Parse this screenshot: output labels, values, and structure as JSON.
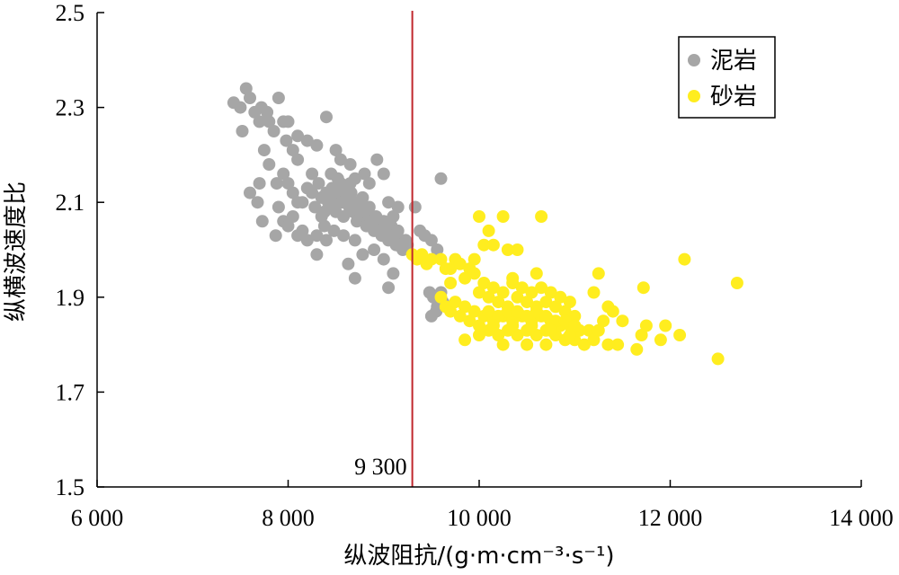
{
  "chart_data": {
    "type": "scatter",
    "xlabel": "纵波阻抗/(g·m·cm⁻³·s⁻¹)",
    "ylabel": "纵横波速度比",
    "xlim": [
      6000,
      14000
    ],
    "ylim": [
      1.5,
      2.5
    ],
    "x_ticks": [
      6000,
      8000,
      10000,
      12000,
      14000
    ],
    "x_tick_labels": [
      "6 000",
      "8 000",
      "10 000",
      "12 000",
      "14 000"
    ],
    "y_ticks": [
      1.5,
      1.7,
      1.9,
      2.1,
      2.3,
      2.5
    ],
    "y_tick_labels": [
      "1.5",
      "1.7",
      "1.9",
      "2.1",
      "2.3",
      "2.5"
    ],
    "grid": false,
    "legend_position": "top-right",
    "threshold": {
      "x": 9300,
      "label": "9 300",
      "color": "#c0282d"
    },
    "series": [
      {
        "name": "泥岩",
        "color": "#a6a6a6",
        "points": [
          [
            7430,
            2.31
          ],
          [
            7500,
            2.3
          ],
          [
            7560,
            2.34
          ],
          [
            7600,
            2.32
          ],
          [
            7520,
            2.25
          ],
          [
            7650,
            2.29
          ],
          [
            7700,
            2.27
          ],
          [
            7720,
            2.3
          ],
          [
            7780,
            2.29
          ],
          [
            7800,
            2.27
          ],
          [
            7850,
            2.25
          ],
          [
            7900,
            2.32
          ],
          [
            7950,
            2.27
          ],
          [
            7980,
            2.23
          ],
          [
            8050,
            2.21
          ],
          [
            8100,
            2.19
          ],
          [
            7750,
            2.21
          ],
          [
            7800,
            2.18
          ],
          [
            7700,
            2.14
          ],
          [
            7680,
            2.1
          ],
          [
            7730,
            2.06
          ],
          [
            7900,
            2.09
          ],
          [
            7950,
            2.06
          ],
          [
            8050,
            2.07
          ],
          [
            8100,
            2.03
          ],
          [
            8200,
            2.02
          ],
          [
            8300,
            2.03
          ],
          [
            8380,
            2.05
          ],
          [
            8200,
            2.23
          ],
          [
            8300,
            2.22
          ],
          [
            8400,
            2.28
          ],
          [
            8500,
            2.21
          ],
          [
            8550,
            2.19
          ],
          [
            8650,
            2.18
          ],
          [
            8800,
            2.16
          ],
          [
            8850,
            2.14
          ],
          [
            8930,
            2.19
          ],
          [
            9000,
            2.16
          ],
          [
            7880,
            2.14
          ],
          [
            7950,
            2.16
          ],
          [
            8000,
            2.14
          ],
          [
            8050,
            2.12
          ],
          [
            8100,
            2.1
          ],
          [
            8150,
            2.1
          ],
          [
            8200,
            2.13
          ],
          [
            8250,
            2.12
          ],
          [
            8280,
            2.09
          ],
          [
            8320,
            2.14
          ],
          [
            8350,
            2.11
          ],
          [
            8380,
            2.08
          ],
          [
            8400,
            2.12
          ],
          [
            8420,
            2.1
          ],
          [
            8450,
            2.09
          ],
          [
            8460,
            2.13
          ],
          [
            8480,
            2.11
          ],
          [
            8500,
            2.08
          ],
          [
            8520,
            2.15
          ],
          [
            8540,
            2.12
          ],
          [
            8560,
            2.1
          ],
          [
            8580,
            2.07
          ],
          [
            8600,
            2.13
          ],
          [
            8620,
            2.11
          ],
          [
            8640,
            2.09
          ],
          [
            8660,
            2.12
          ],
          [
            8680,
            2.08
          ],
          [
            8700,
            2.1
          ],
          [
            8720,
            2.06
          ],
          [
            8740,
            2.09
          ],
          [
            8760,
            2.07
          ],
          [
            8780,
            2.11
          ],
          [
            8800,
            2.08
          ],
          [
            8820,
            2.05
          ],
          [
            8850,
            2.07
          ],
          [
            8880,
            2.06
          ],
          [
            8900,
            2.04
          ],
          [
            8920,
            2.07
          ],
          [
            8950,
            2.05
          ],
          [
            8980,
            2.03
          ],
          [
            9000,
            2.06
          ],
          [
            9020,
            2.04
          ],
          [
            9050,
            2.02
          ],
          [
            9080,
            2.05
          ],
          [
            9100,
            2.03
          ],
          [
            9130,
            2.01
          ],
          [
            9150,
            2.04
          ],
          [
            9180,
            2.02
          ],
          [
            9200,
            2.0
          ],
          [
            9230,
            2.02
          ],
          [
            9250,
            2.01
          ],
          [
            8450,
            2.16
          ],
          [
            8550,
            2.14
          ],
          [
            8650,
            2.14
          ],
          [
            8350,
            2.07
          ],
          [
            8480,
            2.04
          ],
          [
            8580,
            2.03
          ],
          [
            8700,
            2.02
          ],
          [
            8780,
            1.99
          ],
          [
            8900,
            2.0
          ],
          [
            9000,
            1.98
          ],
          [
            9100,
            1.95
          ],
          [
            8700,
            1.94
          ],
          [
            8630,
            1.97
          ],
          [
            9050,
            1.92
          ],
          [
            8400,
            2.02
          ],
          [
            8300,
            1.99
          ],
          [
            8150,
            2.04
          ],
          [
            8000,
            2.05
          ],
          [
            7870,
            2.03
          ],
          [
            7600,
            2.12
          ],
          [
            9050,
            2.1
          ],
          [
            9100,
            2.07
          ],
          [
            9150,
            2.09
          ],
          [
            9330,
            2.09
          ],
          [
            9380,
            2.04
          ],
          [
            9430,
            2.03
          ],
          [
            9500,
            2.02
          ],
          [
            9560,
            2.0
          ],
          [
            9600,
            2.15
          ],
          [
            9480,
            1.91
          ],
          [
            9520,
            1.9
          ],
          [
            9560,
            1.88
          ],
          [
            9620,
            1.89
          ],
          [
            9600,
            1.91
          ],
          [
            9500,
            1.86
          ],
          [
            9550,
            1.87
          ],
          [
            8250,
            2.16
          ],
          [
            8100,
            2.24
          ],
          [
            8000,
            2.27
          ],
          [
            8700,
            2.15
          ],
          [
            8850,
            2.09
          ]
        ]
      },
      {
        "name": "砂岩",
        "color": "#ffed1f",
        "points": [
          [
            9300,
            1.99
          ],
          [
            9350,
            1.98
          ],
          [
            9400,
            1.99
          ],
          [
            9450,
            1.97
          ],
          [
            9500,
            1.98
          ],
          [
            9600,
            1.98
          ],
          [
            9650,
            1.96
          ],
          [
            9700,
            1.96
          ],
          [
            9750,
            1.98
          ],
          [
            9800,
            1.97
          ],
          [
            9850,
            1.94
          ],
          [
            9900,
            1.96
          ],
          [
            9950,
            1.98
          ],
          [
            10000,
            2.07
          ],
          [
            10050,
            2.01
          ],
          [
            10100,
            2.04
          ],
          [
            10150,
            2.01
          ],
          [
            10250,
            2.07
          ],
          [
            10300,
            2.0
          ],
          [
            10650,
            2.07
          ],
          [
            9600,
            1.9
          ],
          [
            9650,
            1.88
          ],
          [
            9700,
            1.87
          ],
          [
            9750,
            1.89
          ],
          [
            9800,
            1.86
          ],
          [
            9850,
            1.88
          ],
          [
            9900,
            1.85
          ],
          [
            9950,
            1.87
          ],
          [
            10000,
            1.84
          ],
          [
            10050,
            1.86
          ],
          [
            10100,
            1.83
          ],
          [
            10150,
            1.85
          ],
          [
            10200,
            1.82
          ],
          [
            10250,
            1.86
          ],
          [
            10300,
            1.83
          ],
          [
            10350,
            1.85
          ],
          [
            10400,
            1.82
          ],
          [
            10450,
            1.86
          ],
          [
            10500,
            1.83
          ],
          [
            10550,
            1.85
          ],
          [
            10600,
            1.82
          ],
          [
            10650,
            1.86
          ],
          [
            10700,
            1.83
          ],
          [
            10750,
            1.85
          ],
          [
            10800,
            1.82
          ],
          [
            10850,
            1.84
          ],
          [
            10900,
            1.81
          ],
          [
            10950,
            1.84
          ],
          [
            11000,
            1.81
          ],
          [
            11050,
            1.83
          ],
          [
            11100,
            1.8
          ],
          [
            11150,
            1.83
          ],
          [
            11200,
            1.81
          ],
          [
            10000,
            1.91
          ],
          [
            10050,
            1.93
          ],
          [
            10100,
            1.9
          ],
          [
            10150,
            1.92
          ],
          [
            10200,
            1.89
          ],
          [
            10250,
            1.91
          ],
          [
            10300,
            1.88
          ],
          [
            10350,
            1.93
          ],
          [
            10400,
            1.9
          ],
          [
            10450,
            1.92
          ],
          [
            10500,
            1.89
          ],
          [
            10550,
            1.91
          ],
          [
            10600,
            1.88
          ],
          [
            10650,
            1.92
          ],
          [
            10700,
            1.89
          ],
          [
            10750,
            1.91
          ],
          [
            10800,
            1.88
          ],
          [
            10850,
            1.9
          ],
          [
            10900,
            1.87
          ],
          [
            10950,
            1.89
          ],
          [
            11000,
            1.86
          ],
          [
            10100,
            1.87
          ],
          [
            10200,
            1.86
          ],
          [
            10300,
            1.87
          ],
          [
            10400,
            1.87
          ],
          [
            10500,
            1.86
          ],
          [
            10600,
            1.87
          ],
          [
            10700,
            1.86
          ],
          [
            10800,
            1.85
          ],
          [
            10900,
            1.85
          ],
          [
            11000,
            1.84
          ],
          [
            10150,
            1.84
          ],
          [
            10350,
            1.84
          ],
          [
            10550,
            1.84
          ],
          [
            10750,
            1.83
          ],
          [
            10950,
            1.82
          ],
          [
            9850,
            1.81
          ],
          [
            10000,
            1.82
          ],
          [
            10250,
            1.8
          ],
          [
            10500,
            1.8
          ],
          [
            10700,
            1.8
          ],
          [
            11250,
            1.95
          ],
          [
            11200,
            1.91
          ],
          [
            11350,
            1.88
          ],
          [
            11300,
            1.85
          ],
          [
            11400,
            1.87
          ],
          [
            11450,
            1.8
          ],
          [
            11350,
            1.8
          ],
          [
            11650,
            1.79
          ],
          [
            11700,
            1.82
          ],
          [
            11750,
            1.84
          ],
          [
            11720,
            1.92
          ],
          [
            11900,
            1.81
          ],
          [
            11950,
            1.84
          ],
          [
            12100,
            1.82
          ],
          [
            12150,
            1.98
          ],
          [
            12500,
            1.77
          ],
          [
            12700,
            1.93
          ],
          [
            11500,
            1.85
          ],
          [
            11250,
            1.83
          ],
          [
            10400,
            2.0
          ],
          [
            10350,
            1.94
          ],
          [
            10600,
            1.95
          ],
          [
            9950,
            1.95
          ],
          [
            9700,
            1.93
          ]
        ]
      }
    ]
  }
}
